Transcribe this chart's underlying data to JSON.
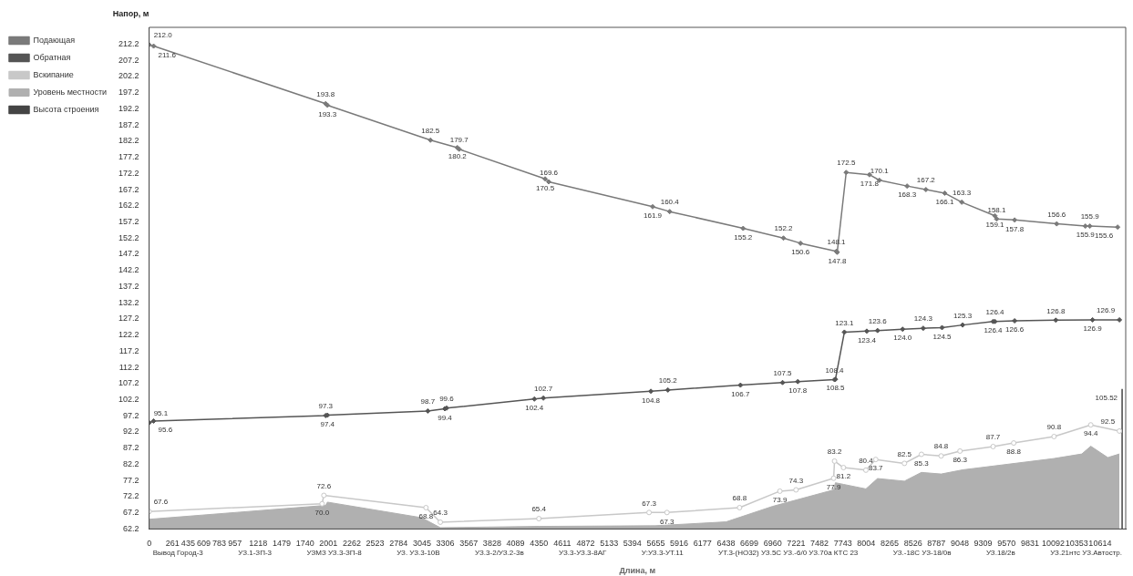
{
  "chart_data": {
    "type": "line",
    "xlabel": "Длина, м",
    "ylabel": "Напор, м",
    "legend": "left",
    "grid": false,
    "xlim": [
      0,
      10900
    ],
    "ylim": [
      62.2,
      217.4
    ],
    "xticks": [
      0,
      261,
      435,
      609,
      783,
      957,
      1218,
      1479,
      1740,
      2001,
      2262,
      2523,
      2784,
      3045,
      3306,
      3567,
      3828,
      4089,
      4350,
      4611,
      4872,
      5133,
      5394,
      5655,
      5916,
      6177,
      6438,
      6699,
      6960,
      7221,
      7482,
      7743,
      8004,
      8265,
      8526,
      8787,
      9048,
      9309,
      9570,
      9831,
      10092,
      10353,
      10614
    ],
    "yticks": [
      62.2,
      67.2,
      72.2,
      77.2,
      82.2,
      87.2,
      92.2,
      97.2,
      102.2,
      107.2,
      112.2,
      117.2,
      122.2,
      127.2,
      132.2,
      137.2,
      142.2,
      147.2,
      152.2,
      157.2,
      162.2,
      167.2,
      172.2,
      177.2,
      182.2,
      187.2,
      192.2,
      197.2,
      202.2,
      207.2,
      212.2
    ],
    "series": [
      {
        "name": "Подающая",
        "type": "line",
        "color": "#7a7a7a",
        "marker": "diamond",
        "x": [
          0,
          50,
          1970,
          1990,
          3140,
          3440,
          3460,
          4420,
          4460,
          5620,
          5810,
          6630,
          7080,
          7270,
          7670,
          7680,
          7780,
          8040,
          8150,
          8460,
          8670,
          8880,
          9070,
          9440,
          9460,
          9660,
          10130,
          10450,
          10500,
          10810
        ],
        "values": [
          212.0,
          211.6,
          193.8,
          193.3,
          182.5,
          180.2,
          179.7,
          170.5,
          169.6,
          161.9,
          160.4,
          155.2,
          152.2,
          150.6,
          148.1,
          147.8,
          172.5,
          171.8,
          170.1,
          168.3,
          167.2,
          166.1,
          163.3,
          159.1,
          158.1,
          157.8,
          156.6,
          155.9,
          155.9,
          155.6
        ],
        "value_labels": [
          "212.0",
          "211.6",
          "193.8",
          "193.3",
          "182.5",
          "180.2",
          "179.7",
          "170.5",
          "169.6",
          "161.9",
          "160.4",
          "155.2",
          "152.2",
          "150.6",
          "148.1",
          "147.8",
          "172.5",
          "171.8",
          "170.1",
          "168.3",
          "167.2",
          "166.1",
          "163.3",
          "159.1",
          "158.1",
          "157.8",
          "156.6",
          "155.9",
          "155.9",
          "155.6"
        ]
      },
      {
        "name": "Обратная",
        "type": "line",
        "color": "#555555",
        "marker": "diamond",
        "x": [
          0,
          50,
          1970,
          1990,
          3110,
          3300,
          3320,
          4300,
          4400,
          5600,
          5790,
          6600,
          7070,
          7240,
          7650,
          7660,
          7760,
          8010,
          8130,
          8410,
          8640,
          8850,
          9080,
          9420,
          9440,
          9660,
          10120,
          10530,
          10830
        ],
        "values": [
          95.1,
          95.6,
          97.3,
          97.4,
          98.7,
          99.4,
          99.6,
          102.4,
          102.7,
          104.8,
          105.2,
          106.7,
          107.5,
          107.8,
          108.4,
          108.5,
          123.1,
          123.4,
          123.6,
          124.0,
          124.3,
          124.5,
          125.3,
          126.4,
          126.4,
          126.6,
          126.8,
          126.9,
          126.9
        ],
        "value_labels": [
          "95.1",
          "95.6",
          "97.3",
          "97.4",
          "98.7",
          "99.4",
          "99.6",
          "102.4",
          "102.7",
          "104.8",
          "105.2",
          "106.7",
          "107.5",
          "107.8",
          "108.4",
          "108.5",
          "123.1",
          "123.4",
          "123.6",
          "124.0",
          "124.3",
          "124.5",
          "125.3",
          "126.4",
          "126.4",
          "126.6",
          "126.8",
          "126.9",
          "126.9"
        ]
      },
      {
        "name": "Вскипание",
        "type": "line",
        "color": "#c8c8c8",
        "marker": "circle",
        "x": [
          0,
          1930,
          1950,
          3090,
          3250,
          4350,
          5580,
          5780,
          6590,
          7040,
          7220,
          7640,
          7650,
          7750,
          8000,
          8110,
          8430,
          8620,
          8840,
          9050,
          9420,
          9650,
          10100,
          10510,
          10830
        ],
        "values": [
          67.6,
          70.0,
          72.6,
          68.8,
          64.3,
          65.4,
          67.3,
          67.3,
          68.8,
          73.9,
          74.3,
          77.9,
          83.2,
          81.2,
          80.4,
          83.7,
          82.5,
          85.3,
          84.8,
          86.3,
          87.7,
          88.8,
          90.8,
          94.4,
          92.5
        ],
        "value_labels": [
          "67.6",
          "70.0",
          "72.6",
          "68.8",
          "64.3",
          "65.4",
          "67.3",
          "67.3",
          "68.8",
          "73.9",
          "74.3",
          "77.9",
          "83.2",
          "81.2",
          "80.4",
          "83.7",
          "82.5",
          "85.3",
          "84.8",
          "86.3",
          "87.7",
          "88.8",
          "90.8",
          "94.4",
          "92.5"
        ]
      },
      {
        "name": "Уровень местности",
        "type": "area",
        "color": "#b0b0b0",
        "x": [
          0,
          1970,
          1990,
          3040,
          3250,
          4350,
          5650,
          6440,
          6960,
          7640,
          7660,
          7750,
          8000,
          8130,
          8430,
          8620,
          8840,
          9080,
          10100,
          10410,
          10510,
          10700,
          10830
        ],
        "values": [
          65.2,
          69.5,
          70.5,
          65.7,
          62.6,
          63.0,
          63.2,
          64.4,
          69.2,
          74.3,
          76.5,
          76.0,
          74.6,
          77.8,
          77.0,
          79.7,
          79.2,
          80.5,
          84.0,
          85.4,
          87.8,
          84.3,
          85.4
        ],
        "value_labels": [
          null,
          null,
          null,
          null,
          null,
          null,
          null,
          null,
          null,
          null,
          null,
          null,
          null,
          null,
          null,
          null,
          null,
          null,
          null,
          null,
          null,
          null,
          null
        ]
      },
      {
        "name": "Высота строения",
        "type": "line",
        "color": "#444444",
        "marker": "none",
        "x": [
          10860,
          10860
        ],
        "values": [
          62.2,
          105.52
        ],
        "value_labels": [
          null,
          "105.52"
        ]
      }
    ],
    "data_labels": true,
    "annotations": [
      "Вывод Город-3",
      "УЗ.1-ЗП-3",
      "УЗМЗ УЗ.3-ЗП-8",
      "УЗ. УЗ.3-10В",
      "УЗ.3-2/УЗ.2-3в",
      "УЗ.3-УЗ.3-8АГ",
      "У:УЗ.3-УТ.11",
      "УТ.3-(НО32) УЗ.5С УЗ.-6/0 УЗ.70а КТС 23",
      "УЗ.-18С УЗ-18/0в",
      "УЗ.18/2в",
      "УЗ.21нтс УЗ.Автостр."
    ]
  }
}
